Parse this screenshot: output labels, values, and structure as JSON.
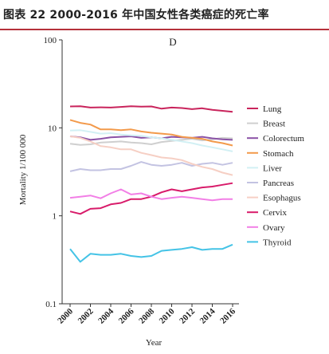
{
  "header": {
    "title": "图表 22 2000-2016 年中国女性各类癌症的死亡率"
  },
  "chart_data": {
    "type": "line",
    "panel_label": "D",
    "xlabel": "Year",
    "ylabel": "Mortality 1/100 000",
    "y_scale": "log",
    "ylim": [
      0.1,
      100
    ],
    "xlim": [
      2000,
      2016
    ],
    "y_ticks": [
      100,
      10,
      1,
      0.1
    ],
    "y_tick_labels": [
      "100",
      "10",
      "1",
      "0.1"
    ],
    "x_ticks": [
      2000,
      2002,
      2004,
      2006,
      2008,
      2010,
      2012,
      2014,
      2016
    ],
    "x_tick_labels": [
      "2000",
      "2002",
      "2004",
      "2006",
      "2008",
      "2010",
      "2012",
      "2014",
      "2016"
    ],
    "grid": false,
    "legend_position": "right",
    "x": [
      2000,
      2001,
      2002,
      2003,
      2004,
      2005,
      2006,
      2007,
      2008,
      2009,
      2010,
      2011,
      2012,
      2013,
      2014,
      2015,
      2016
    ],
    "series": [
      {
        "name": "Lung",
        "color": "#c9245c",
        "values": [
          17.5,
          17.6,
          17.0,
          17.1,
          17.0,
          17.3,
          17.6,
          17.4,
          17.5,
          16.5,
          17.0,
          16.8,
          16.3,
          16.7,
          16.0,
          15.6,
          15.2
        ]
      },
      {
        "name": "Breast",
        "color": "#cfcfcf",
        "values": [
          6.6,
          6.4,
          6.5,
          6.8,
          6.9,
          7.0,
          6.8,
          6.7,
          6.5,
          6.9,
          7.1,
          7.3,
          7.5,
          7.2,
          7.4,
          7.7,
          7.6
        ]
      },
      {
        "name": "Colorectum",
        "color": "#8a52a6",
        "values": [
          8.0,
          7.8,
          7.3,
          7.5,
          7.8,
          7.9,
          8.0,
          7.7,
          7.8,
          7.6,
          7.9,
          7.8,
          7.7,
          7.9,
          7.6,
          7.4,
          7.3
        ]
      },
      {
        "name": "Stomach",
        "color": "#f39a4b",
        "values": [
          12.3,
          11.4,
          10.9,
          9.6,
          9.6,
          9.4,
          9.6,
          9.1,
          8.8,
          8.6,
          8.4,
          7.9,
          7.7,
          7.5,
          7.0,
          6.7,
          6.3
        ]
      },
      {
        "name": "Liver",
        "color": "#d2f0f4",
        "values": [
          9.3,
          9.4,
          9.0,
          8.6,
          8.7,
          8.4,
          8.2,
          8.1,
          7.8,
          7.6,
          7.3,
          7.0,
          6.7,
          6.3,
          6.0,
          5.7,
          5.4
        ]
      },
      {
        "name": "Pancreas",
        "color": "#c3c3e2",
        "values": [
          3.2,
          3.4,
          3.3,
          3.3,
          3.4,
          3.4,
          3.7,
          4.1,
          3.8,
          3.7,
          3.8,
          4.0,
          3.7,
          3.9,
          4.0,
          3.8,
          4.0
        ]
      },
      {
        "name": "Esophagus",
        "color": "#f6cfc4",
        "values": [
          8.0,
          7.7,
          7.0,
          6.2,
          6.0,
          5.7,
          5.7,
          5.2,
          4.9,
          4.6,
          4.5,
          4.3,
          3.9,
          3.6,
          3.4,
          3.1,
          2.9
        ]
      },
      {
        "name": "Cervix",
        "color": "#d81b6a",
        "values": [
          1.12,
          1.05,
          1.2,
          1.22,
          1.35,
          1.4,
          1.55,
          1.55,
          1.65,
          1.85,
          2.0,
          1.9,
          2.0,
          2.1,
          2.15,
          2.25,
          2.35
        ]
      },
      {
        "name": "Ovary",
        "color": "#f27fe6",
        "values": [
          1.6,
          1.65,
          1.7,
          1.58,
          1.8,
          2.0,
          1.75,
          1.8,
          1.65,
          1.55,
          1.6,
          1.65,
          1.6,
          1.55,
          1.5,
          1.55,
          1.55
        ]
      },
      {
        "name": "Thyroid",
        "color": "#44c3e6",
        "values": [
          0.42,
          0.3,
          0.37,
          0.36,
          0.36,
          0.37,
          0.35,
          0.34,
          0.35,
          0.4,
          0.41,
          0.42,
          0.44,
          0.41,
          0.42,
          0.42,
          0.47
        ]
      }
    ]
  }
}
